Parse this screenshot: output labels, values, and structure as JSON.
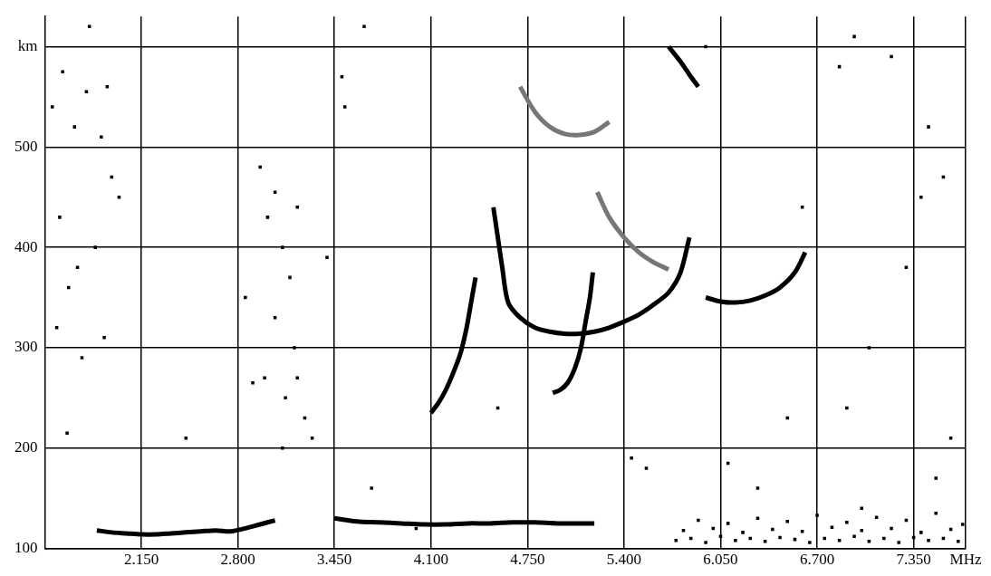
{
  "chart_data": {
    "type": "scatter",
    "xlim": [
      1.5,
      7.7
    ],
    "ylim": [
      100,
      630
    ],
    "xticks": [
      {
        "value": 2.15,
        "label": "2.150"
      },
      {
        "value": 2.8,
        "label": "2.800"
      },
      {
        "value": 3.45,
        "label": "3.450"
      },
      {
        "value": 4.1,
        "label": "4.100"
      },
      {
        "value": 4.75,
        "label": "4.750"
      },
      {
        "value": 5.4,
        "label": "5.400"
      },
      {
        "value": 6.05,
        "label": "6.050"
      },
      {
        "value": 6.7,
        "label": "6.700"
      },
      {
        "value": 7.35,
        "label": "7.350"
      },
      {
        "value": 7.7,
        "label": "MHz"
      }
    ],
    "yticks": [
      100,
      200,
      300,
      400,
      500,
      {
        "value": 600,
        "label": "km"
      }
    ],
    "grid": true,
    "series": [
      {
        "color": "#000000",
        "line_style": "solid",
        "x": [
          1.85,
          1.95,
          2.05,
          2.15,
          2.25,
          2.35,
          2.45,
          2.55,
          2.65,
          2.75,
          2.85,
          2.95,
          3.05
        ],
        "values": [
          118,
          116,
          115,
          114,
          114,
          115,
          116,
          117,
          118,
          117,
          120,
          124,
          128
        ]
      },
      {
        "color": "#000000",
        "line_style": "solid",
        "x": [
          3.45,
          3.6,
          3.75,
          3.9,
          4.05,
          4.2,
          4.35,
          4.5,
          4.65,
          4.8,
          4.95,
          5.1,
          5.2
        ],
        "values": [
          130,
          127,
          126,
          125,
          124,
          124,
          125,
          125,
          126,
          126,
          125,
          125,
          125
        ]
      },
      {
        "color": "#000000",
        "line_style": "solid",
        "x": [
          4.1,
          4.15,
          4.2,
          4.25,
          4.3,
          4.34,
          4.37,
          4.4
        ],
        "values": [
          235,
          245,
          258,
          275,
          295,
          320,
          345,
          370
        ]
      },
      {
        "color": "#000000",
        "line_style": "solid",
        "x": [
          4.92,
          4.97,
          5.02,
          5.07,
          5.11,
          5.14,
          5.17,
          5.19
        ],
        "values": [
          255,
          258,
          265,
          280,
          300,
          325,
          350,
          375
        ]
      },
      {
        "color": "#000000",
        "line_style": "solid",
        "x": [
          4.52,
          4.55,
          4.58,
          4.62,
          4.7,
          4.8,
          4.9,
          5.0,
          5.1,
          5.2,
          5.3,
          5.4,
          5.5,
          5.6,
          5.7,
          5.78,
          5.84
        ],
        "values": [
          440,
          410,
          380,
          345,
          330,
          320,
          316,
          314,
          314,
          316,
          320,
          326,
          333,
          343,
          355,
          375,
          410
        ]
      },
      {
        "color": "#000000",
        "line_style": "solid",
        "x": [
          5.95,
          6.05,
          6.15,
          6.25,
          6.35,
          6.45,
          6.55,
          6.62
        ],
        "values": [
          350,
          346,
          345,
          347,
          352,
          360,
          375,
          395
        ]
      },
      {
        "color": "#777777",
        "line_style": "solid",
        "x": [
          5.22,
          5.3,
          5.4,
          5.5,
          5.6,
          5.7
        ],
        "values": [
          455,
          430,
          410,
          395,
          385,
          378
        ]
      },
      {
        "color": "#777777",
        "line_style": "solid",
        "x": [
          4.7,
          4.8,
          4.9,
          5.0,
          5.1,
          5.2,
          5.3
        ],
        "values": [
          560,
          535,
          520,
          513,
          512,
          515,
          525
        ]
      },
      {
        "color": "#000000",
        "line_style": "solid",
        "x": [
          5.7,
          5.78,
          5.85,
          5.9
        ],
        "values": [
          600,
          585,
          570,
          560
        ]
      },
      {
        "color": "#000000",
        "marker": "square",
        "x": [
          1.55,
          1.62,
          1.7,
          1.78,
          1.88,
          1.95,
          1.6,
          1.72,
          1.84,
          1.58,
          1.66,
          1.9,
          1.75,
          2.0,
          2.95,
          3.0,
          3.05,
          3.1,
          3.15,
          3.2,
          3.05,
          2.98,
          3.12,
          3.18,
          3.25,
          3.3,
          3.1,
          3.2,
          3.5,
          3.52,
          2.85,
          2.9,
          3.4,
          3.7,
          4.0,
          4.55,
          5.45,
          5.55,
          6.3,
          6.6,
          6.85,
          6.95,
          7.2,
          7.45,
          7.55,
          7.3,
          6.9,
          7.05,
          7.5,
          7.6,
          1.8,
          1.65,
          2.45,
          3.65,
          5.95,
          6.1,
          6.5,
          7.4,
          7.0,
          1.92
        ],
        "values": [
          540,
          575,
          520,
          555,
          510,
          470,
          430,
          380,
          400,
          320,
          360,
          310,
          290,
          450,
          480,
          430,
          455,
          400,
          370,
          440,
          330,
          270,
          250,
          300,
          230,
          210,
          200,
          270,
          570,
          540,
          350,
          265,
          390,
          160,
          120,
          240,
          190,
          180,
          160,
          440,
          580,
          610,
          590,
          520,
          470,
          380,
          240,
          300,
          170,
          210,
          620,
          215,
          210,
          620,
          600,
          185,
          230,
          450,
          140,
          560
        ]
      },
      {
        "color": "#000000",
        "marker": "square",
        "x": [
          5.75,
          5.85,
          5.95,
          6.05,
          6.15,
          6.25,
          6.35,
          6.45,
          6.55,
          6.65,
          6.75,
          6.85,
          6.95,
          7.05,
          7.15,
          7.25,
          7.35,
          7.45,
          7.55,
          7.65,
          5.8,
          6.0,
          6.2,
          6.4,
          6.6,
          6.8,
          7.0,
          7.2,
          7.4,
          7.6,
          5.9,
          6.1,
          6.3,
          6.5,
          6.7,
          6.9,
          7.1,
          7.3,
          7.5,
          7.68
        ],
        "values": [
          108,
          110,
          106,
          112,
          108,
          110,
          107,
          111,
          109,
          106,
          110,
          108,
          112,
          107,
          110,
          106,
          111,
          108,
          110,
          107,
          118,
          120,
          116,
          119,
          117,
          121,
          118,
          120,
          116,
          119,
          128,
          125,
          130,
          127,
          133,
          126,
          131,
          128,
          135,
          124
        ]
      }
    ]
  }
}
